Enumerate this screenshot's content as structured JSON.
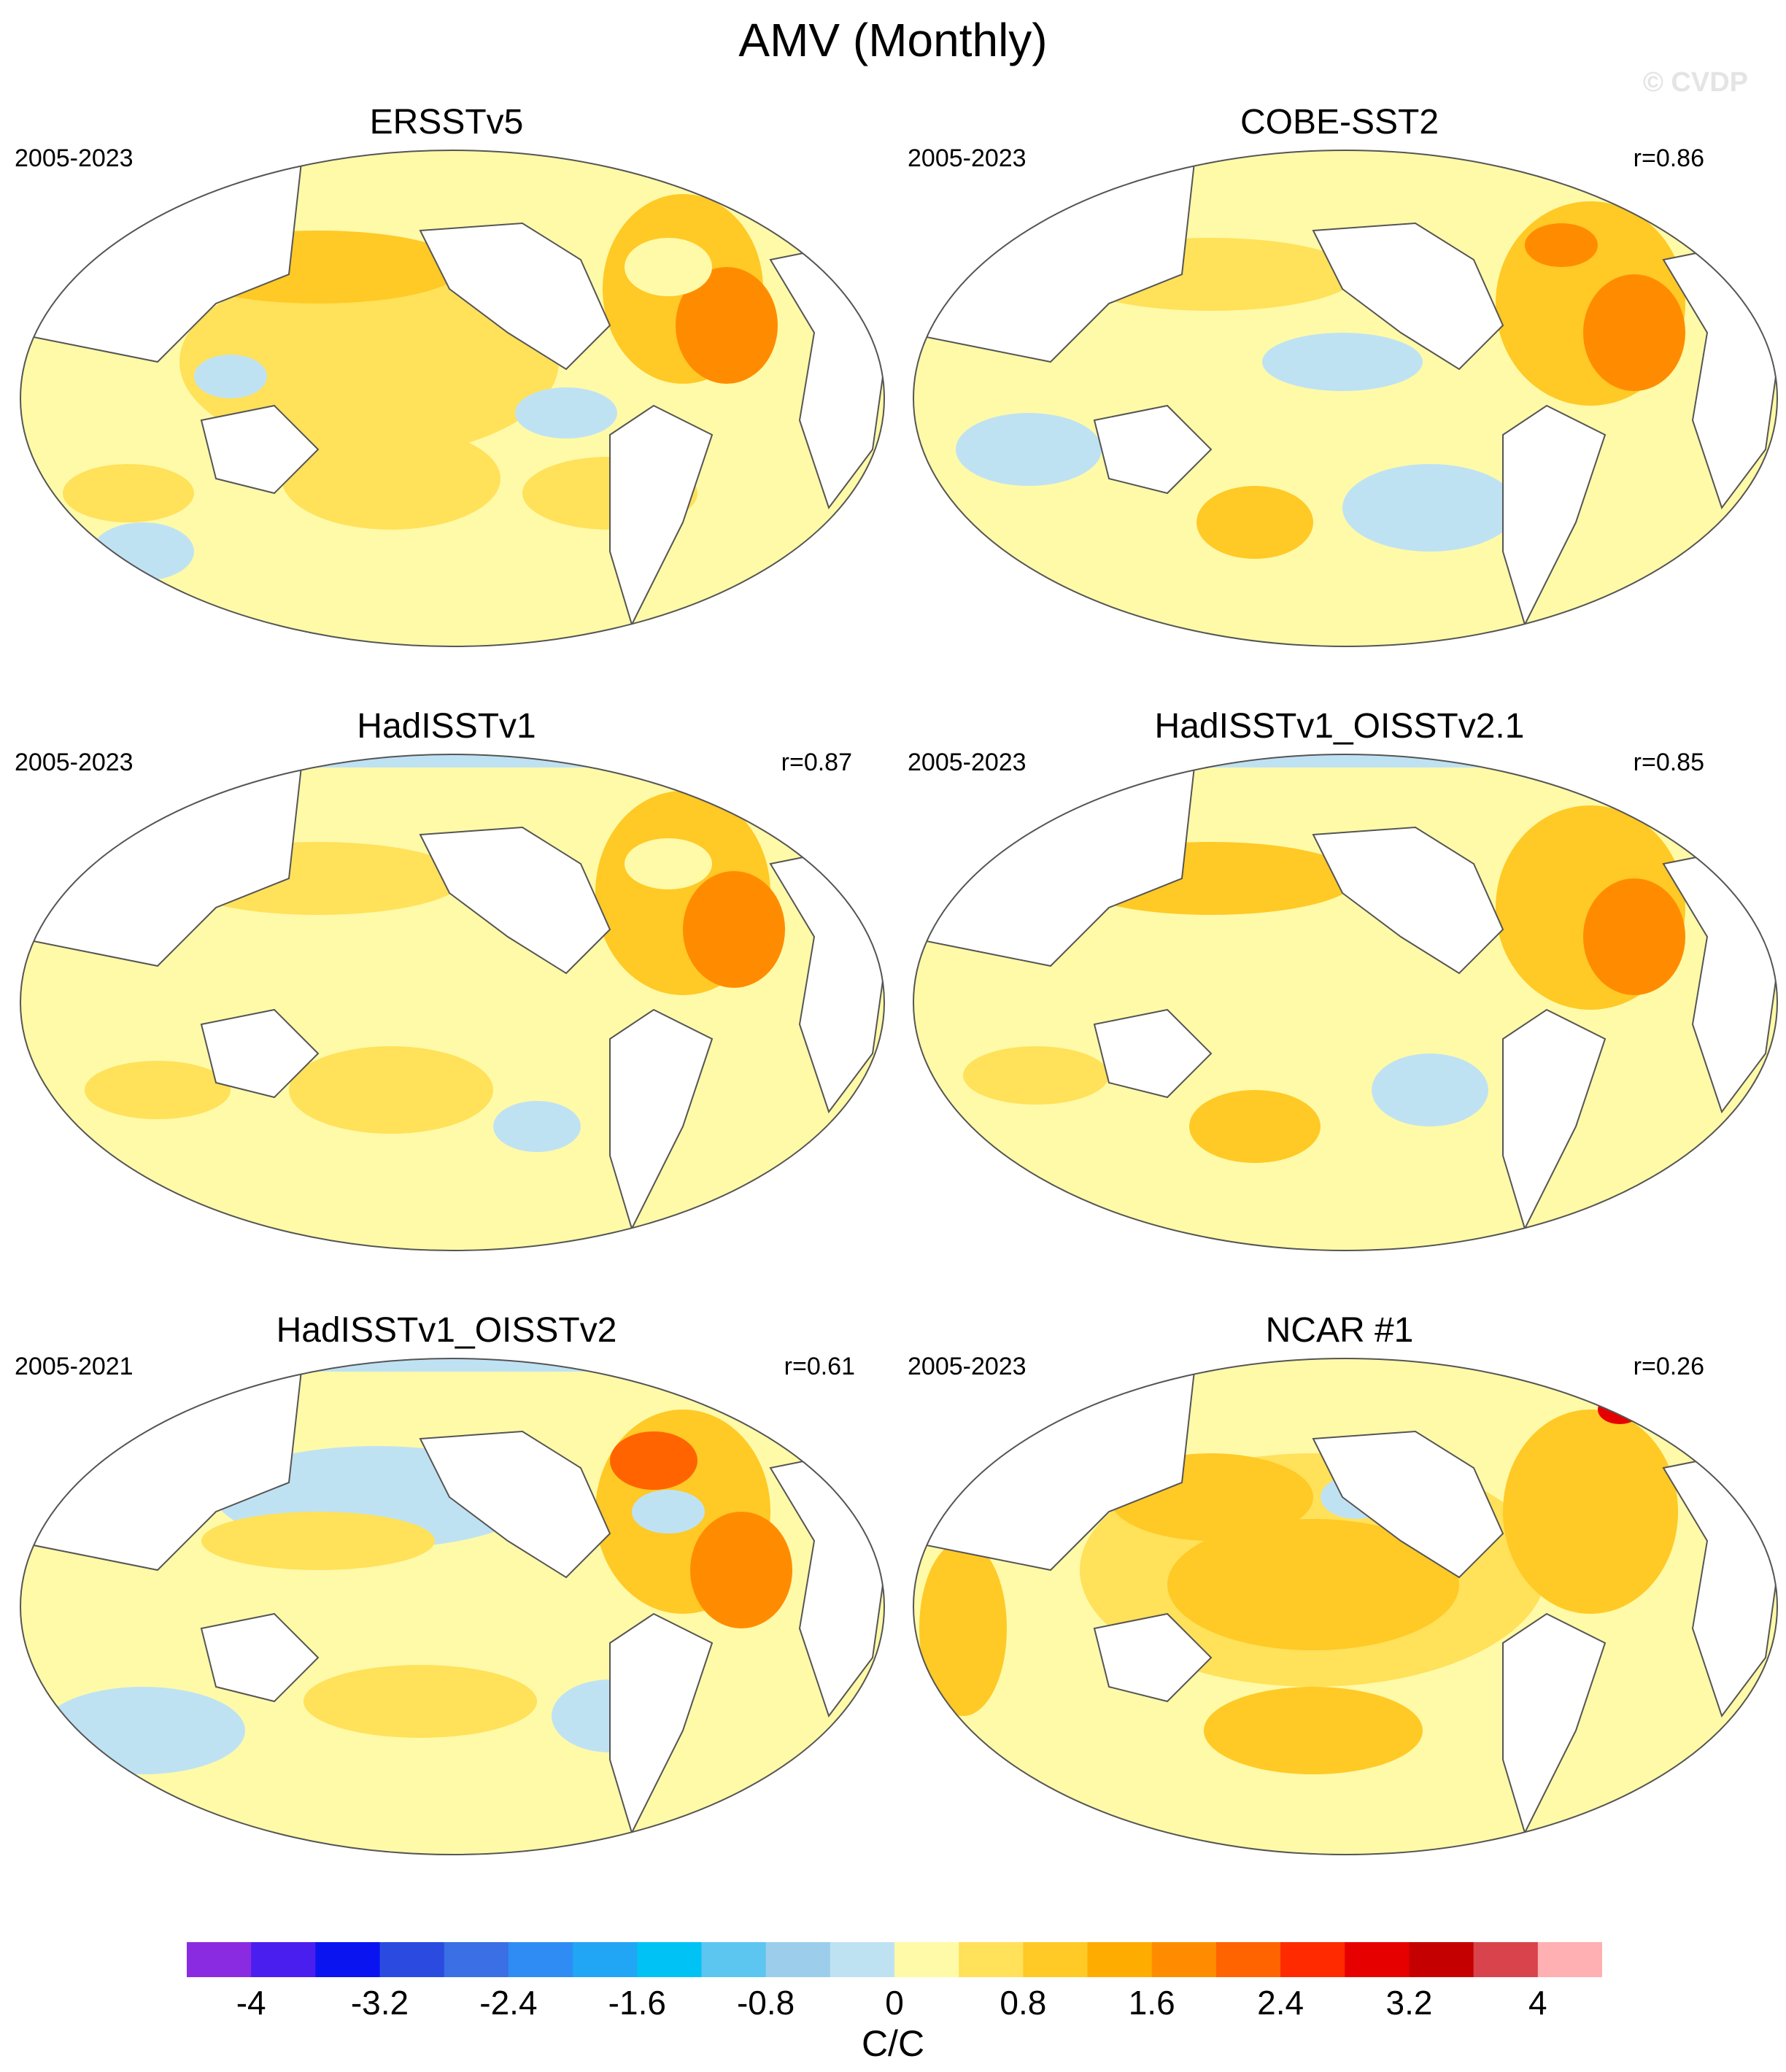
{
  "figure": {
    "title": "AMV (Monthly)",
    "watermark": "© CVDP",
    "units": "C/C"
  },
  "panels": [
    {
      "name": "ERSSTv5",
      "period": "2005-2023",
      "r": ""
    },
    {
      "name": "COBE-SST2",
      "period": "2005-2023",
      "r": "r=0.86"
    },
    {
      "name": "HadISSTv1",
      "period": "2005-2023",
      "r": "r=0.87"
    },
    {
      "name": "HadISSTv1_OISSTv2.1",
      "period": "2005-2023",
      "r": "r=0.85"
    },
    {
      "name": "HadISSTv1_OISSTv2",
      "period": "2005-2021",
      "r": "r=0.61"
    },
    {
      "name": "NCAR #1",
      "period": "2005-2023",
      "r": "r=0.26"
    }
  ],
  "colorbar": {
    "colors": [
      "#8a2be2",
      "#4b1ef0",
      "#0a14f0",
      "#2b4be0",
      "#3a6fe6",
      "#2f8cf5",
      "#21a6f5",
      "#00c2f5",
      "#5cc6f0",
      "#9ccdeb",
      "#bfe2f3",
      "#fffaa8",
      "#ffe15a",
      "#ffc926",
      "#ffac00",
      "#ff8c00",
      "#ff6400",
      "#ff2a00",
      "#e60000",
      "#c40000",
      "#d9434b",
      "#ffb0b2"
    ],
    "labels": [
      "-4",
      "-3.2",
      "-2.4",
      "-1.6",
      "-0.8",
      "0",
      "0.8",
      "1.6",
      "2.4",
      "3.2",
      "4"
    ]
  },
  "chart_data": {
    "type": "heatmap",
    "title": "AMV (Monthly)",
    "units": "C/C",
    "color_levels": [
      -4,
      -3.6,
      -3.2,
      -2.8,
      -2.4,
      -2,
      -1.6,
      -1.2,
      -0.8,
      -0.4,
      0,
      0.4,
      0.8,
      1.2,
      1.6,
      2,
      2.4,
      2.8,
      3.2,
      3.6,
      4
    ],
    "panels": [
      "ERSSTv5",
      "COBE-SST2",
      "HadISSTv1",
      "HadISSTv1_OISSTv2.1",
      "HadISSTv1_OISSTv2",
      "NCAR #1"
    ],
    "pattern_correlation": [
      null,
      0.86,
      0.87,
      0.85,
      0.61,
      0.26
    ]
  }
}
